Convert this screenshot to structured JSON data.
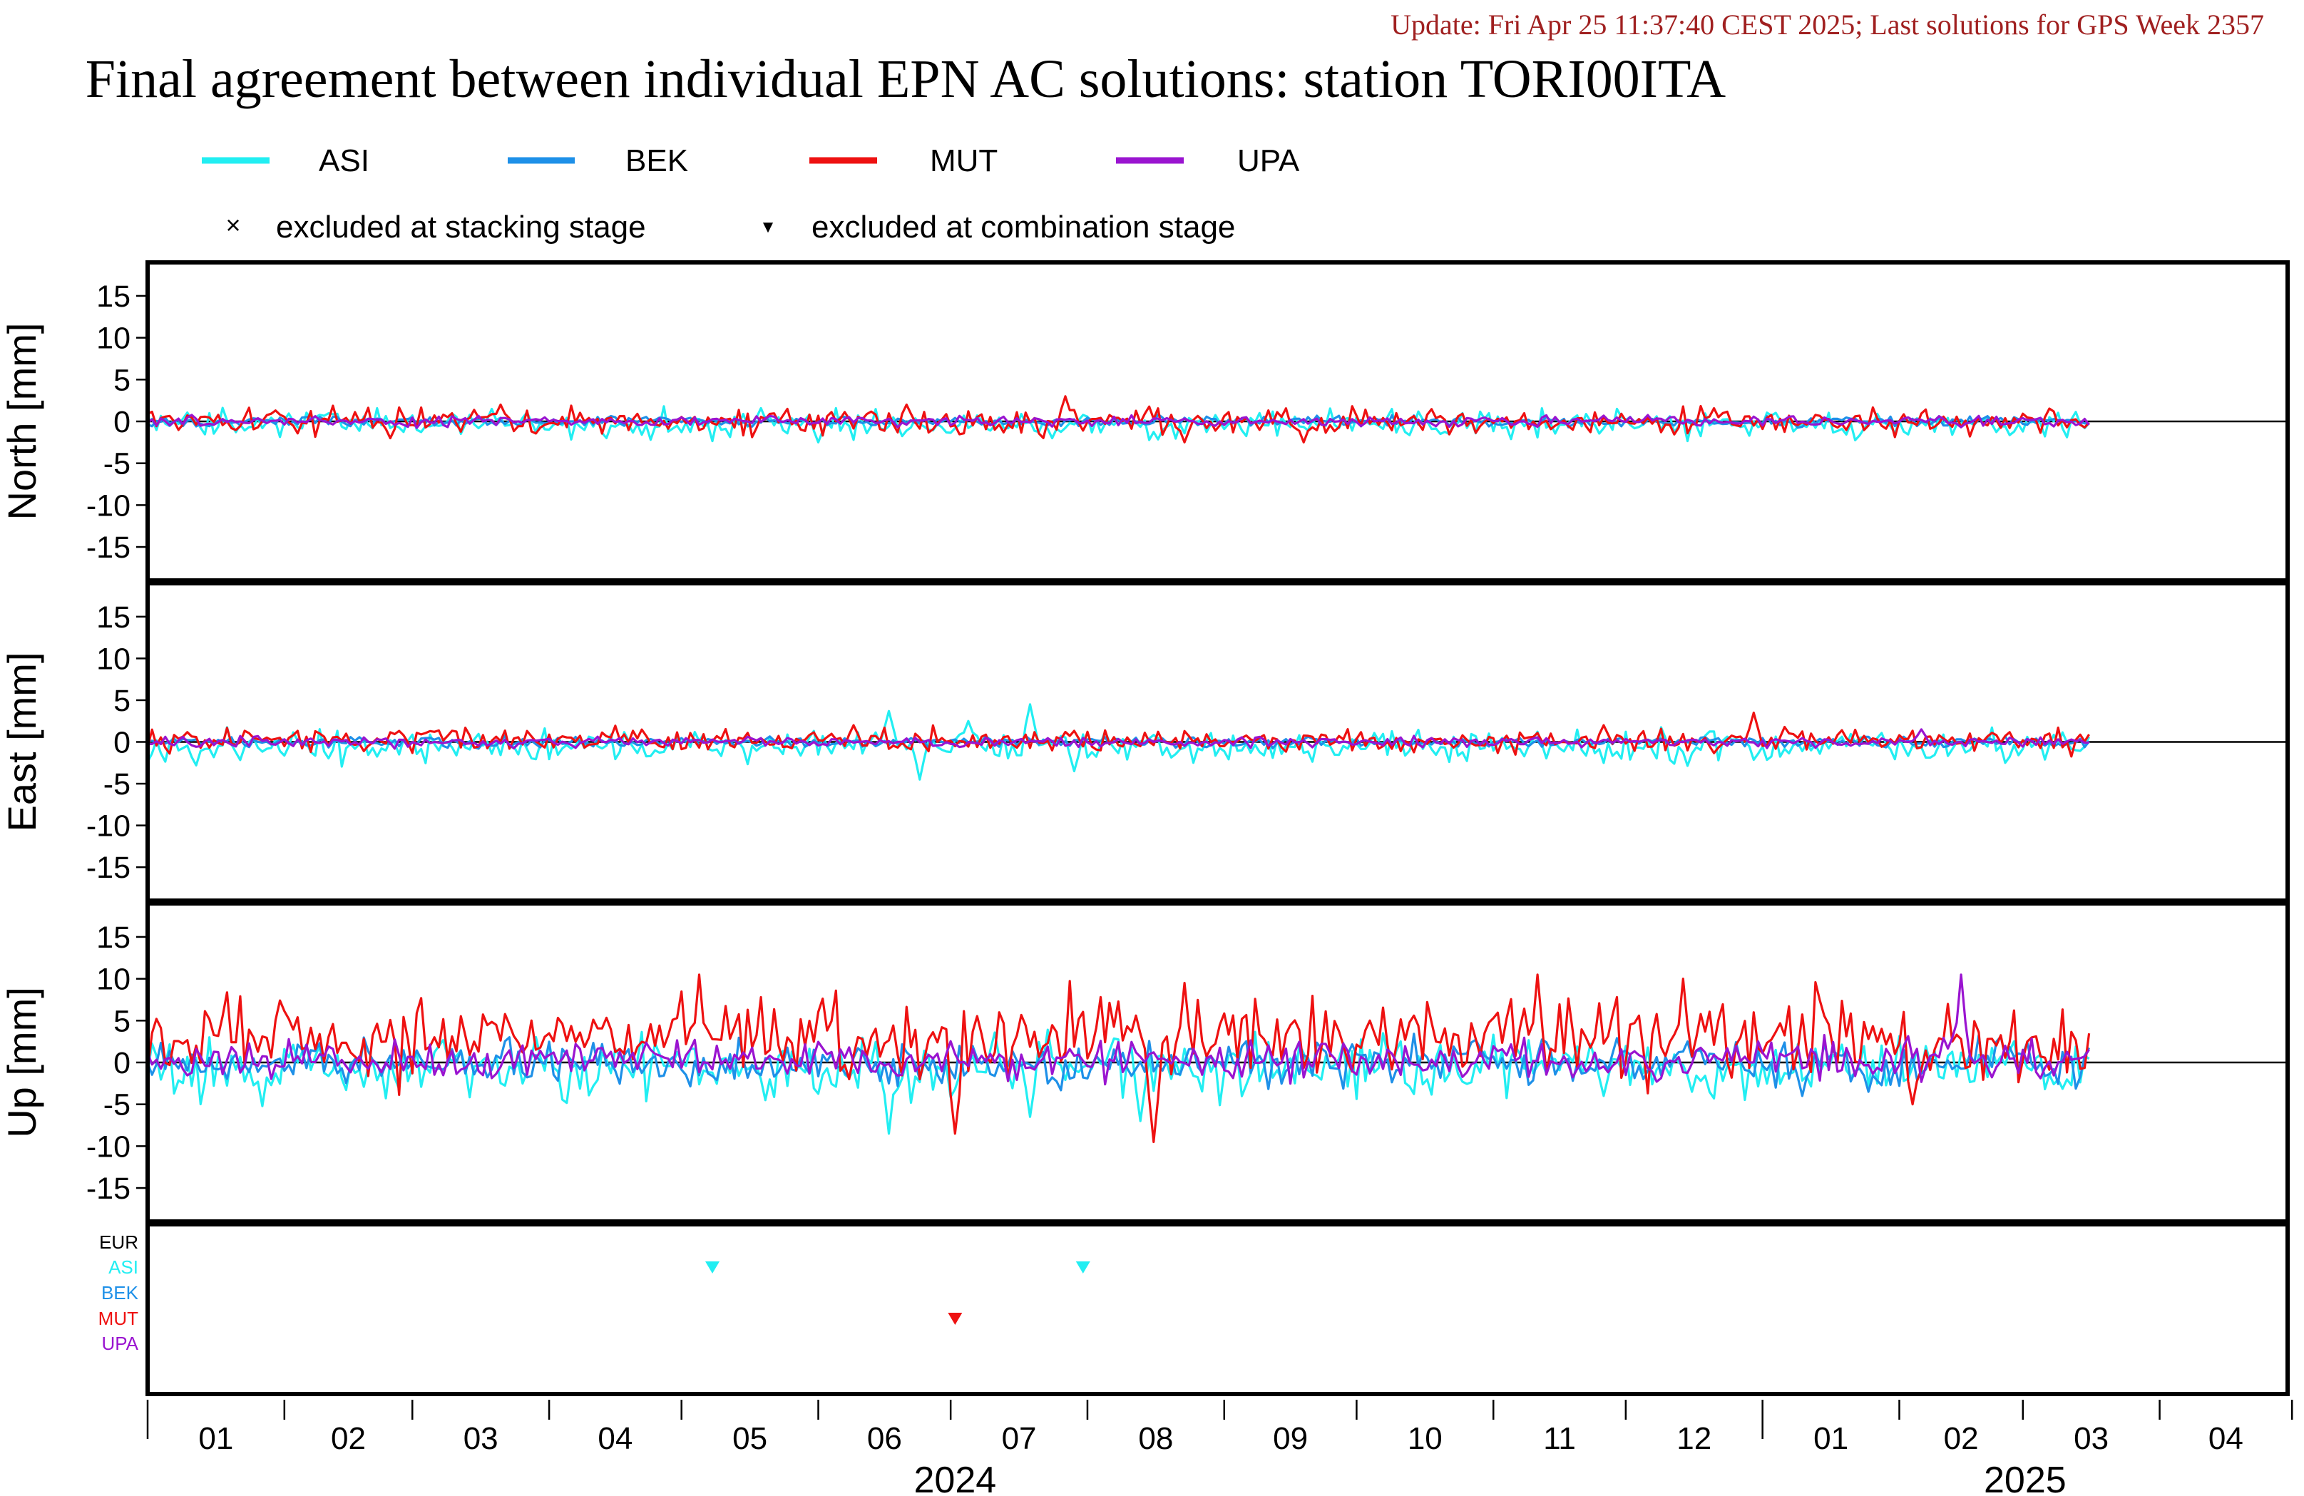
{
  "header": {
    "update_line": "Update: Fri Apr 25 11:37:40 CEST 2025; Last solutions for GPS Week 2357",
    "title": "Final agreement between individual EPN AC solutions: station TORI00ITA"
  },
  "legend": {
    "series": [
      {
        "name": "ASI",
        "color": "#22eef2"
      },
      {
        "name": "BEK",
        "color": "#1e90e8"
      },
      {
        "name": "MUT",
        "color": "#ee1111"
      },
      {
        "name": "UPA",
        "color": "#9a14d0"
      }
    ],
    "markers": [
      {
        "symbol": "×",
        "label": "excluded at stacking stage"
      },
      {
        "symbol": "▼",
        "label": "excluded at combination stage"
      }
    ]
  },
  "chart_data": {
    "type": "line",
    "x_axis": {
      "range": [
        "2024-01-01",
        "2025-04-30"
      ],
      "month_ticks": [
        "01",
        "02",
        "03",
        "04",
        "05",
        "06",
        "07",
        "08",
        "09",
        "10",
        "11",
        "12",
        "01",
        "02",
        "03",
        "04"
      ],
      "year_labels": [
        "2024",
        "2025"
      ]
    },
    "panels": [
      {
        "ylabel": "North [mm]",
        "ylim": [
          -19,
          19
        ],
        "yticks": [
          15,
          10,
          5,
          0,
          -5,
          -10,
          -15
        ],
        "series": [
          {
            "name": "ASI",
            "amp": 0.8,
            "bias": -0.3,
            "peaks": [
              [
                152,
                -2.5
              ],
              [
                205,
                -2
              ]
            ]
          },
          {
            "name": "BEK",
            "amp": 0.3,
            "bias": 0,
            "peaks": []
          },
          {
            "name": "MUT",
            "amp": 0.8,
            "bias": 0,
            "peaks": [
              [
                55,
                -2
              ],
              [
                80,
                2
              ],
              [
                172,
                2
              ],
              [
                208,
                3
              ],
              [
                235,
                -2.5
              ],
              [
                262,
                -2.5
              ]
            ]
          },
          {
            "name": "UPA",
            "amp": 0.3,
            "bias": 0,
            "peaks": []
          }
        ]
      },
      {
        "ylabel": "East [mm]",
        "ylim": [
          -19,
          19
        ],
        "yticks": [
          15,
          10,
          5,
          0,
          -5,
          -10,
          -15
        ],
        "series": [
          {
            "name": "ASI",
            "amp": 0.9,
            "bias": -0.6,
            "peaks": [
              [
                168,
                3.7
              ],
              [
                175,
                -4.5
              ],
              [
                186,
                2.5
              ],
              [
                200,
                4.5
              ],
              [
                210,
                -3.5
              ]
            ]
          },
          {
            "name": "BEK",
            "amp": 0.3,
            "bias": 0,
            "peaks": []
          },
          {
            "name": "MUT",
            "amp": 0.7,
            "bias": 0.2,
            "peaks": [
              [
                160,
                2
              ],
              [
                330,
                2
              ],
              [
                364,
                3.5
              ]
            ]
          },
          {
            "name": "UPA",
            "amp": 0.3,
            "bias": 0,
            "peaks": [
              [
                402,
                1.5
              ]
            ]
          }
        ]
      },
      {
        "ylabel": "Up [mm]",
        "ylim": [
          -19,
          19
        ],
        "yticks": [
          15,
          10,
          5,
          0,
          -5,
          -10,
          -15
        ],
        "series": [
          {
            "name": "ASI",
            "amp": 1.8,
            "bias": -0.5,
            "peaks": [
              [
                140,
                -4.5
              ],
              [
                168,
                -8.5
              ],
              [
                200,
                -6.5
              ],
              [
                225,
                -7
              ],
              [
                330,
                -4
              ],
              [
                350,
                -3.5
              ]
            ]
          },
          {
            "name": "BEK",
            "amp": 1.3,
            "bias": 0,
            "peaks": [
              [
                375,
                -4
              ],
              [
                390,
                -3.5
              ]
            ]
          },
          {
            "name": "MUT",
            "amp": 2.4,
            "bias": 3,
            "peaks": [
              [
                125,
                10.5
              ],
              [
                183,
                -8.5
              ],
              [
                228,
                -9.5
              ],
              [
                235,
                9.5
              ],
              [
                315,
                10.5
              ],
              [
                348,
                10
              ],
              [
                400,
                -5
              ]
            ]
          },
          {
            "name": "UPA",
            "amp": 1.2,
            "bias": 0.3,
            "peaks": [
              [
                411,
                10.5
              ]
            ]
          }
        ]
      }
    ],
    "exclusion_panel": {
      "rows": [
        "EUR",
        "ASI",
        "BEK",
        "MUT",
        "UPA"
      ],
      "row_colors": [
        "#000000",
        "#22eef2",
        "#1e90e8",
        "#ee1111",
        "#9a14d0"
      ],
      "markers": [
        {
          "row": "ASI",
          "date": "2024-05-08",
          "symbol": "▼"
        },
        {
          "row": "ASI",
          "date": "2024-07-31",
          "symbol": "▼"
        },
        {
          "row": "MUT",
          "date": "2024-07-02",
          "symbol": "▼"
        }
      ]
    },
    "data_end": "2025-03-16"
  }
}
